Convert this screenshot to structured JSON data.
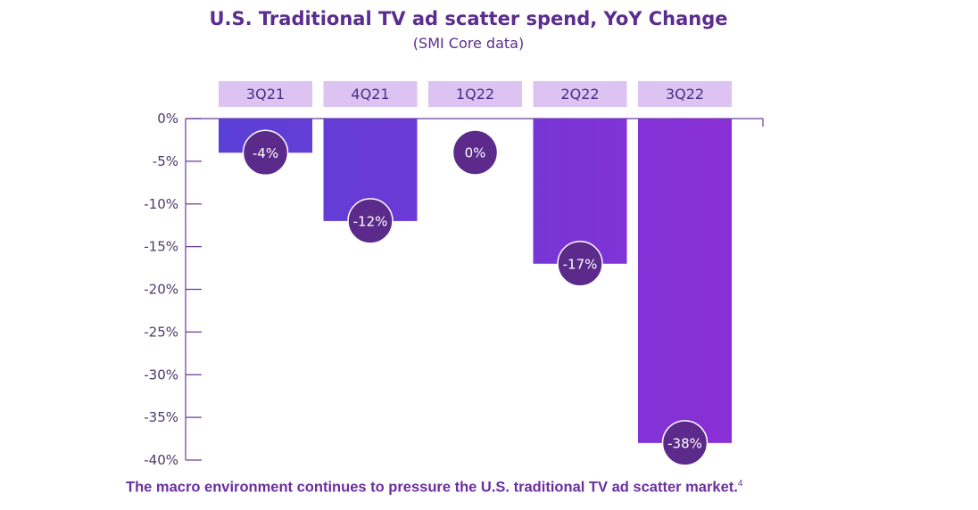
{
  "chart_data": {
    "type": "bar",
    "title": "U.S. Traditional TV ad scatter spend, YoY Change",
    "subtitle": "(SMI Core data)",
    "categories": [
      "3Q21",
      "4Q21",
      "1Q22",
      "2Q22",
      "3Q22"
    ],
    "values": [
      -4,
      -12,
      0,
      -17,
      -38
    ],
    "data_labels": [
      "-4%",
      "-12%",
      "0%",
      "-17%",
      "-38%"
    ],
    "yticks": [
      0,
      -5,
      -10,
      -15,
      -20,
      -25,
      -30,
      -35,
      -40
    ],
    "ytick_labels": [
      "0%",
      "-5%",
      "-10%",
      "-15%",
      "-20%",
      "-25%",
      "-30%",
      "-35%",
      "-40%"
    ],
    "ylim": [
      -40,
      0
    ],
    "grid": false,
    "legend": "none",
    "colors": {
      "bar_gradient": [
        "#5a40d6",
        "#8a2fd6"
      ],
      "category_box": "#dcc3f2",
      "label_circle": "#5b2a8a",
      "axis": "#6a3d9a",
      "title": "#5b2d8e"
    }
  },
  "footnote": {
    "text": "The macro environment continues to pressure the U.S. traditional TV ad scatter market.",
    "ref": "4"
  }
}
